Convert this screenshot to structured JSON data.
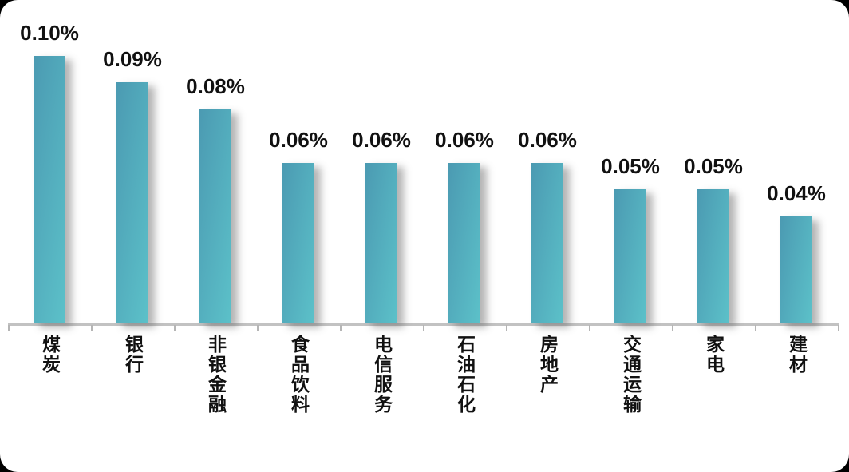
{
  "chart_data": {
    "type": "bar",
    "categories": [
      "煤炭",
      "银行",
      "非银金融",
      "食品饮料",
      "电信服务",
      "石油石化",
      "房地产",
      "交通运输",
      "家电",
      "建材"
    ],
    "values": [
      0.1,
      0.09,
      0.08,
      0.06,
      0.06,
      0.06,
      0.06,
      0.05,
      0.05,
      0.04
    ],
    "value_labels": [
      "0.10%",
      "0.09%",
      "0.08%",
      "0.06%",
      "0.06%",
      "0.06%",
      "0.06%",
      "0.05%",
      "0.05%",
      "0.04%"
    ],
    "title": "",
    "xlabel": "",
    "ylabel": "",
    "ylim": [
      0,
      0.11
    ],
    "unit": "%",
    "grid": false,
    "legend": null,
    "bar_gradient_start": "#4b9ab2",
    "bar_gradient_end": "#5cc1c9",
    "label_color": "#111111",
    "axis_color": "#c2c2c2"
  }
}
